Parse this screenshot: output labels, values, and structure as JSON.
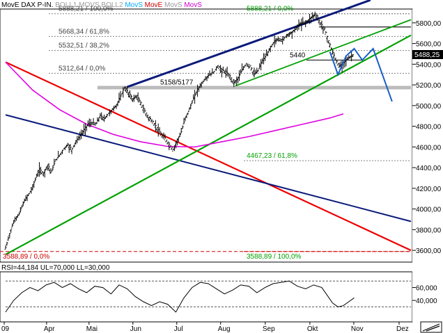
{
  "header": [
    {
      "text": "MovE",
      "color": "#000000"
    },
    {
      "text": "DAX P-IN.",
      "color": "#000000"
    },
    {
      "text": "BOLL1",
      "color": "#9a9a9a"
    },
    {
      "text": "MOVS",
      "color": "#9a9a9a"
    },
    {
      "text": "BOLL2",
      "color": "#9a9a9a"
    },
    {
      "text": "MovS",
      "color": "#00aaff"
    },
    {
      "text": "MovE",
      "color": "#d00000"
    },
    {
      "text": "MovS",
      "color": "#9a9a9a"
    },
    {
      "text": "MovS",
      "color": "#d000d0"
    }
  ],
  "rsi_label": "RSI=44,184 UL=70,000 LL=30,000",
  "colors": {
    "price": "#000000",
    "red_trend": "#ee0000",
    "navy_trend": "#0a1a7a",
    "green_trend": "#00a000",
    "magenta_ma": "#e000e0",
    "blue_projection": "#1a5fc8",
    "fib_lines": "#808080",
    "low_line": "#cc0000",
    "last_price_box": "#000000"
  },
  "chart_data": [
    {
      "type": "line",
      "title": "DAX P-IN.",
      "x": [
        "09",
        "Apr",
        "Mai",
        "Jun",
        "Jul",
        "Aug",
        "Sep",
        "Okt",
        "Nov",
        "Dez"
      ],
      "ylim": [
        3500,
        5920
      ],
      "y_ticks": [
        "5800,00",
        "5600,00",
        "5400,00",
        "5200,00",
        "5000,00",
        "4800,00",
        "4600,00",
        "4400,00",
        "4200,00",
        "4000,00",
        "3800,00",
        "3600,00"
      ],
      "last_price": "5488,25",
      "series": [
        {
          "name": "DAX P-IN.",
          "values": [
            [
              0,
              3620
            ],
            [
              4,
              3800
            ],
            [
              7,
              3900
            ],
            [
              10,
              3950
            ],
            [
              13,
              4050
            ],
            [
              16,
              4120
            ],
            [
              19,
              4180
            ],
            [
              22,
              4280
            ],
            [
              25,
              4380
            ],
            [
              28,
              4340
            ],
            [
              31,
              4420
            ],
            [
              34,
              4360
            ],
            [
              37,
              4470
            ],
            [
              40,
              4520
            ],
            [
              43,
              4580
            ],
            [
              46,
              4620
            ],
            [
              49,
              4570
            ],
            [
              52,
              4650
            ],
            [
              55,
              4700
            ],
            [
              58,
              4760
            ],
            [
              61,
              4820
            ],
            [
              64,
              4830
            ],
            [
              67,
              4820
            ],
            [
              70,
              4900
            ],
            [
              73,
              4870
            ],
            [
              76,
              4920
            ],
            [
              79,
              4960
            ],
            [
              82,
              5000
            ],
            [
              85,
              5080
            ],
            [
              88,
              5170
            ],
            [
              91,
              5120
            ],
            [
              94,
              5060
            ],
            [
              97,
              5090
            ],
            [
              100,
              5020
            ],
            [
              103,
              4940
            ],
            [
              106,
              4880
            ],
            [
              109,
              4840
            ],
            [
              112,
              4780
            ],
            [
              115,
              4720
            ],
            [
              118,
              4680
            ],
            [
              121,
              4620
            ],
            [
              124,
              4570
            ],
            [
              127,
              4660
            ],
            [
              130,
              4740
            ],
            [
              133,
              4880
            ],
            [
              136,
              4960
            ],
            [
              139,
              5060
            ],
            [
              142,
              5150
            ],
            [
              145,
              5210
            ],
            [
              148,
              5260
            ],
            [
              151,
              5300
            ],
            [
              154,
              5320
            ],
            [
              157,
              5380
            ],
            [
              160,
              5340
            ],
            [
              163,
              5320
            ],
            [
              166,
              5280
            ],
            [
              169,
              5220
            ],
            [
              172,
              5260
            ],
            [
              175,
              5340
            ],
            [
              178,
              5400
            ],
            [
              181,
              5380
            ],
            [
              184,
              5300
            ],
            [
              187,
              5340
            ],
            [
              190,
              5430
            ],
            [
              193,
              5480
            ],
            [
              196,
              5560
            ],
            [
              199,
              5620
            ],
            [
              202,
              5640
            ],
            [
              205,
              5630
            ],
            [
              208,
              5680
            ],
            [
              211,
              5700
            ],
            [
              214,
              5730
            ],
            [
              217,
              5780
            ],
            [
              220,
              5800
            ],
            [
              223,
              5810
            ],
            [
              226,
              5850
            ],
            [
              229,
              5880
            ],
            [
              231,
              5840
            ],
            [
              233,
              5790
            ],
            [
              236,
              5740
            ],
            [
              239,
              5620
            ],
            [
              242,
              5510
            ],
            [
              245,
              5420
            ],
            [
              247,
              5380
            ],
            [
              250,
              5410
            ],
            [
              253,
              5450
            ],
            [
              256,
              5480
            ],
            [
              258,
              5488
            ]
          ]
        },
        {
          "name": "MovS",
          "values": [
            [
              0,
              5420
            ],
            [
              20,
              5150
            ],
            [
              40,
              4960
            ],
            [
              60,
              4820
            ],
            [
              80,
              4720
            ],
            [
              100,
              4650
            ],
            [
              120,
              4605
            ],
            [
              140,
              4600
            ],
            [
              160,
              4650
            ],
            [
              180,
              4700
            ],
            [
              200,
              4760
            ],
            [
              220,
              4820
            ],
            [
              240,
              4880
            ],
            [
              250,
              4920
            ]
          ]
        }
      ],
      "trendlines": {
        "red": [
          [
            0,
            5420
          ],
          [
            300,
            3600
          ]
        ],
        "navy_lower": [
          [
            0,
            4910
          ],
          [
            300,
            3880
          ]
        ],
        "navy_upper": [
          [
            90,
            5180
          ],
          [
            270,
            6020
          ]
        ],
        "green_lower": [
          [
            0,
            3560
          ],
          [
            300,
            5680
          ]
        ],
        "green_upper": [
          [
            170,
            5190
          ],
          [
            300,
            5830
          ]
        ]
      },
      "projection": [
        [
          240,
          5520
        ],
        [
          246,
          5300
        ],
        [
          252,
          5480
        ],
        [
          258,
          5550
        ],
        [
          264,
          5440
        ],
        [
          272,
          5550
        ],
        [
          286,
          5040
        ]
      ],
      "horizontal_levels": [
        {
          "label": "5888,21 / 100,0%",
          "value": 5888.21
        },
        {
          "label": "5668,34 / 61,8%",
          "value": 5668.34
        },
        {
          "label": "5532,51 / 38,2%",
          "value": 5532.51
        },
        {
          "label": "5312,64 / 0,0%",
          "value": 5312.64
        },
        {
          "label": "5888,21 / 0,0%",
          "value": 5888.21
        },
        {
          "label": "4467,23 / 61,8%",
          "value": 4467.23
        },
        {
          "label": "3588,89 / 0,0%",
          "value": 3588.89
        },
        {
          "label": "3588,89 / 100,0%",
          "value": 3588.89
        }
      ],
      "annotations": [
        "5158/5177",
        "5440"
      ],
      "support_zone": [
        5158,
        5177
      ],
      "resistance_level": 5760
    },
    {
      "type": "line",
      "title": "RSI",
      "ylim": [
        10,
        80
      ],
      "y_ticks": [
        "60,000",
        "40,000"
      ],
      "upper_limit": 70,
      "lower_limit": 30,
      "series": [
        {
          "name": "RSI",
          "values": [
            [
              0,
              22
            ],
            [
              6,
              40
            ],
            [
              12,
              52
            ],
            [
              18,
              60
            ],
            [
              24,
              55
            ],
            [
              30,
              64
            ],
            [
              36,
              68
            ],
            [
              42,
              60
            ],
            [
              48,
              66
            ],
            [
              54,
              58
            ],
            [
              60,
              52
            ],
            [
              66,
              62
            ],
            [
              72,
              60
            ],
            [
              78,
              50
            ],
            [
              84,
              64
            ],
            [
              90,
              58
            ],
            [
              96,
              46
            ],
            [
              102,
              38
            ],
            [
              108,
              32
            ],
            [
              114,
              38
            ],
            [
              120,
              34
            ],
            [
              126,
              22
            ],
            [
              132,
              44
            ],
            [
              138,
              60
            ],
            [
              144,
              68
            ],
            [
              150,
              66
            ],
            [
              156,
              58
            ],
            [
              162,
              50
            ],
            [
              168,
              56
            ],
            [
              174,
              64
            ],
            [
              180,
              62
            ],
            [
              186,
              52
            ],
            [
              192,
              60
            ],
            [
              198,
              66
            ],
            [
              204,
              68
            ],
            [
              210,
              70
            ],
            [
              216,
              62
            ],
            [
              222,
              58
            ],
            [
              228,
              64
            ],
            [
              234,
              60
            ],
            [
              238,
              48
            ],
            [
              242,
              36
            ],
            [
              246,
              30
            ],
            [
              250,
              32
            ],
            [
              254,
              38
            ],
            [
              258,
              44
            ]
          ]
        }
      ]
    }
  ]
}
